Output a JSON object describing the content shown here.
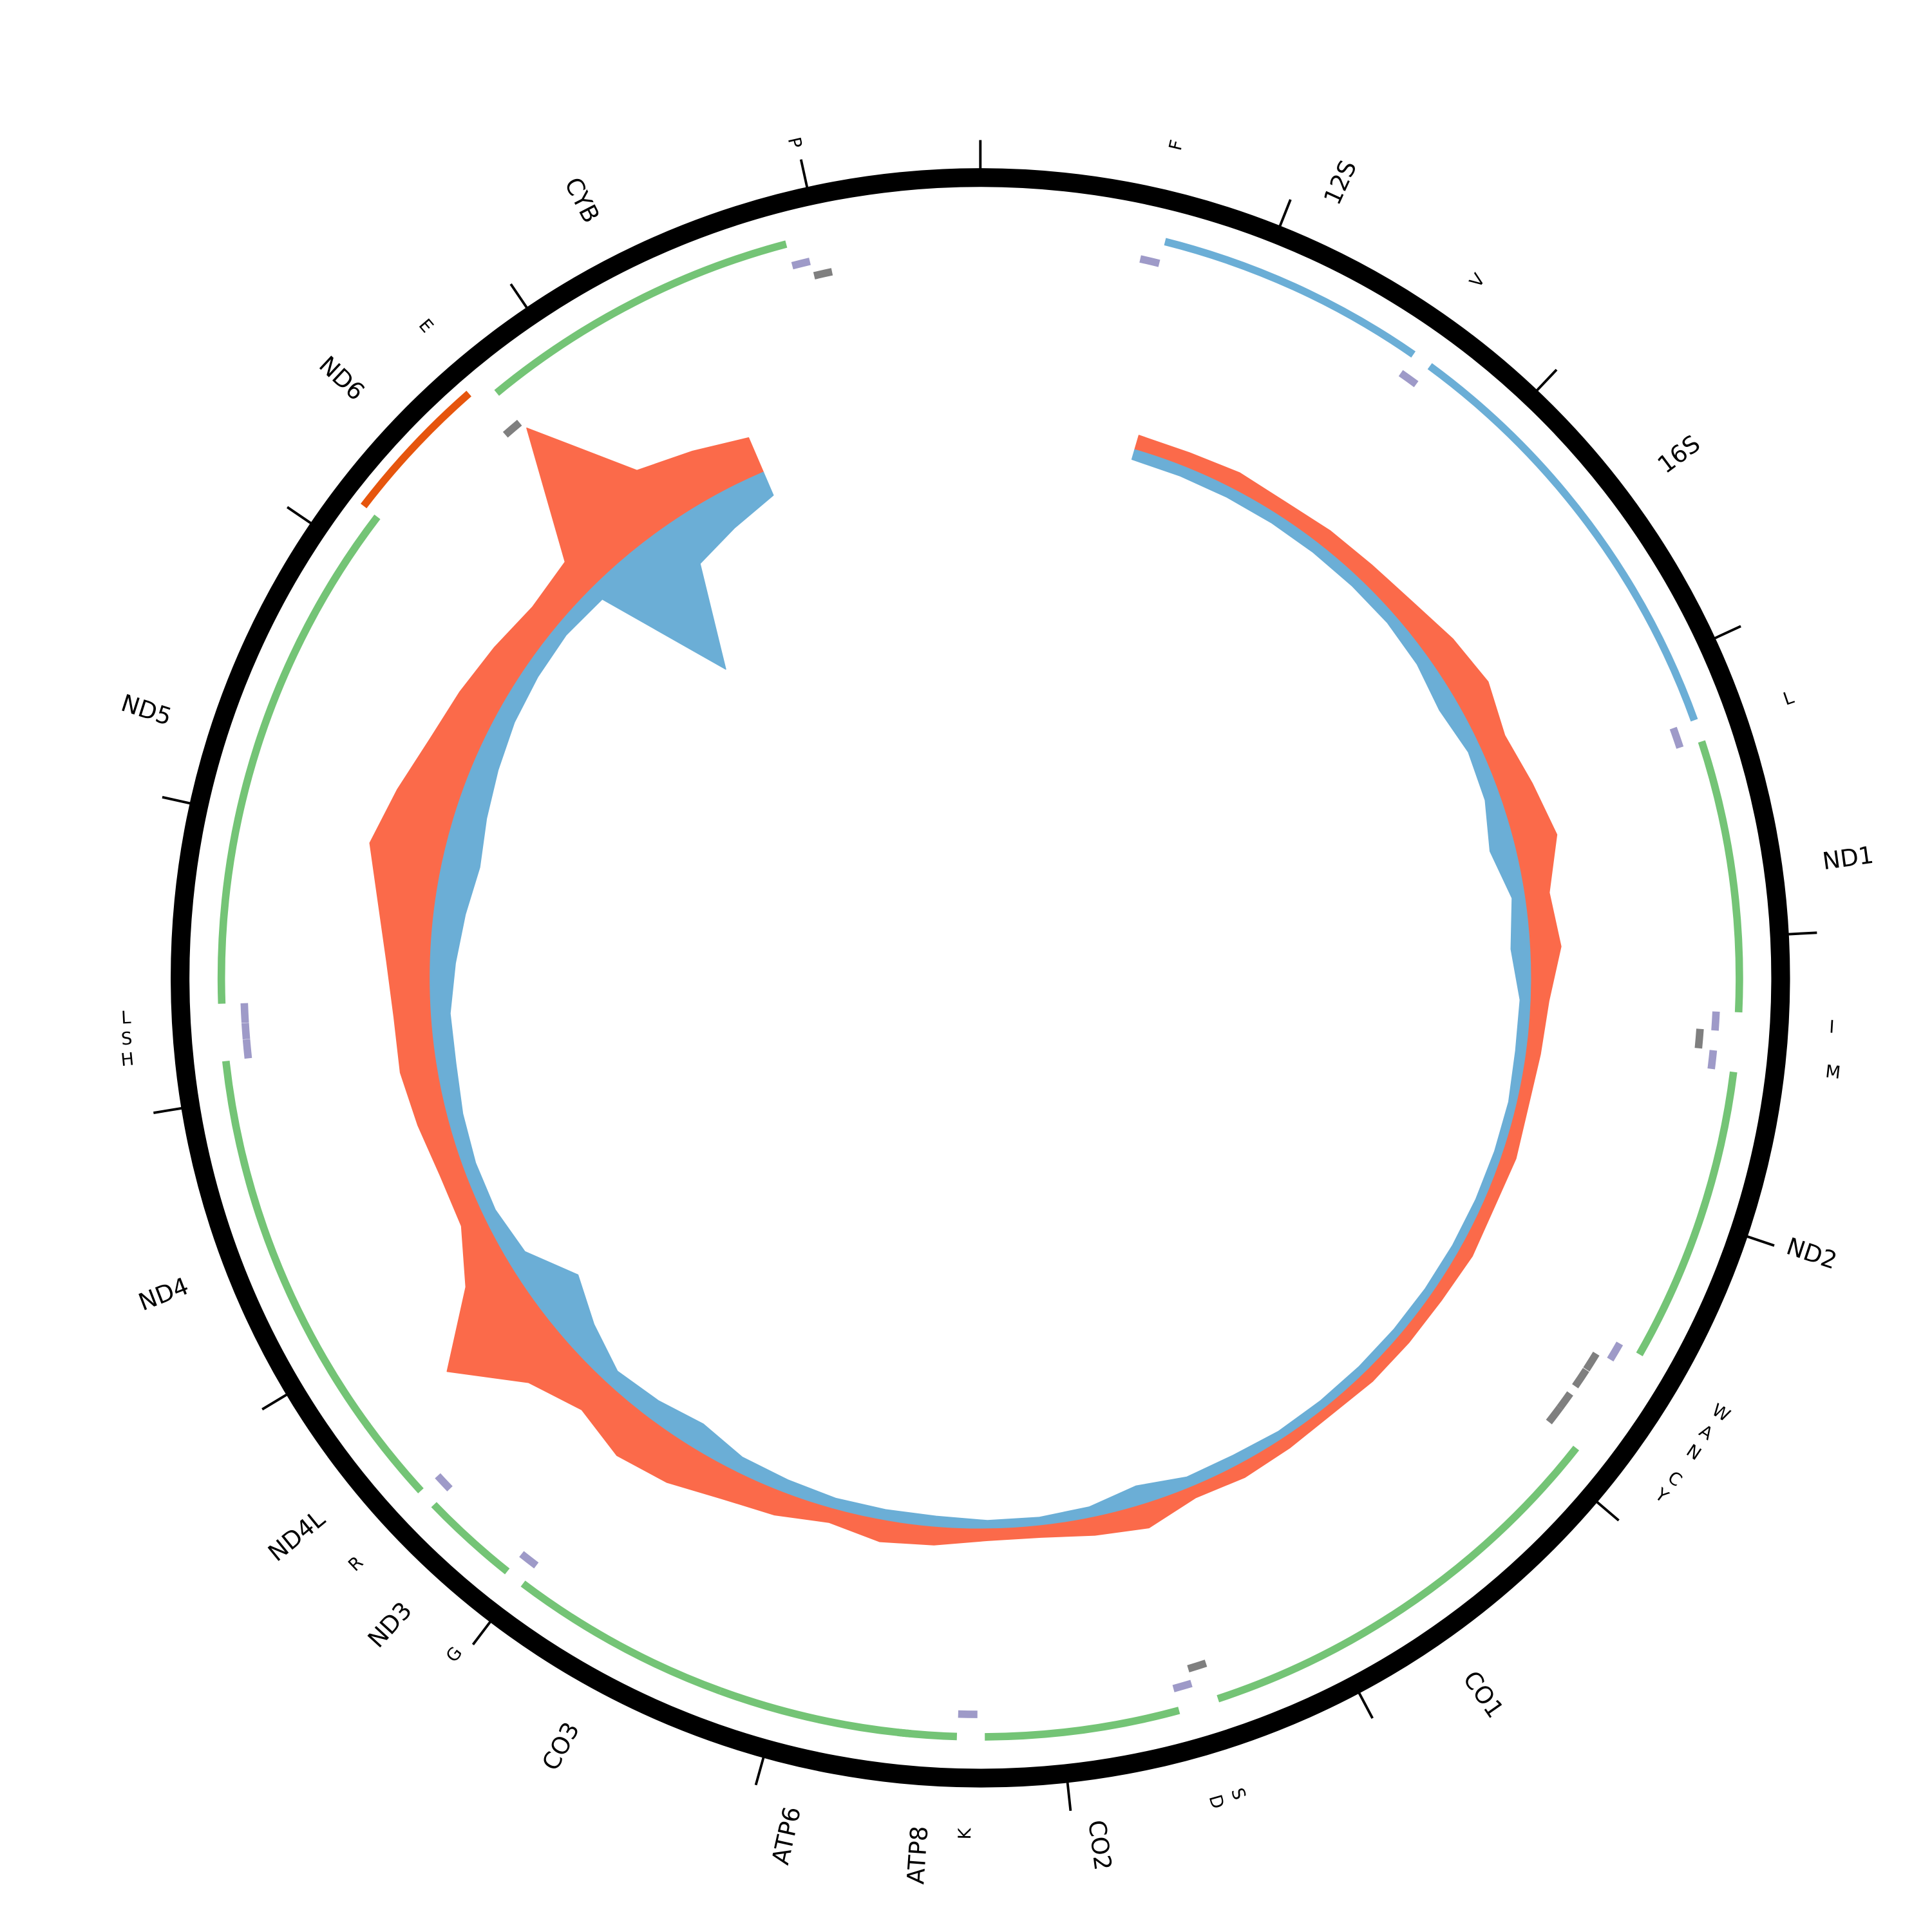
{
  "chart_data": {
    "type": "genome-map",
    "xlim": [
      0,
      16569
    ],
    "xticks": [
      0,
      1000,
      2000,
      3000,
      4000,
      5000,
      6000,
      7000,
      8000,
      9000,
      10000,
      11000,
      12000,
      13000,
      14000,
      15000,
      16000
    ],
    "features": [
      {
        "name": "F",
        "start": 577,
        "end": 647,
        "strand": "+",
        "kind": "trna",
        "color": "#9e9ac8"
      },
      {
        "name": "12S",
        "start": 648,
        "end": 1601,
        "strand": "+",
        "kind": "gene",
        "color": "#6baed6"
      },
      {
        "name": "V",
        "start": 1602,
        "end": 1670,
        "strand": "+",
        "kind": "trna",
        "color": "#9e9ac8"
      },
      {
        "name": "16S",
        "start": 1671,
        "end": 3229,
        "strand": "+",
        "kind": "gene",
        "color": "#6baed6"
      },
      {
        "name": "L",
        "start": 3230,
        "end": 3304,
        "strand": "+",
        "kind": "trna",
        "color": "#9e9ac8"
      },
      {
        "name": "ND1",
        "start": 3307,
        "end": 4262,
        "strand": "+",
        "kind": "gene",
        "color": "#74c476"
      },
      {
        "name": "I",
        "start": 4263,
        "end": 4331,
        "strand": "+",
        "kind": "trna",
        "color": "#9e9ac8"
      },
      {
        "name": null,
        "start": 4329,
        "end": 4400,
        "strand": "-",
        "kind": "trna",
        "color": "#7f7f7f"
      },
      {
        "name": "M",
        "start": 4402,
        "end": 4469,
        "strand": "+",
        "kind": "trna",
        "color": "#9e9ac8"
      },
      {
        "name": "ND2",
        "start": 4470,
        "end": 5511,
        "strand": "+",
        "kind": "gene",
        "color": "#74c476"
      },
      {
        "name": "W",
        "start": 5512,
        "end": 5579,
        "strand": "+",
        "kind": "trna",
        "color": "#9e9ac8"
      },
      {
        "name": "A",
        "start": 5587,
        "end": 5655,
        "strand": "-",
        "kind": "trna",
        "color": "#7f7f7f"
      },
      {
        "name": "N",
        "start": 5657,
        "end": 5729,
        "strand": "-",
        "kind": "trna",
        "color": "#7f7f7f"
      },
      {
        "name": "C",
        "start": 5761,
        "end": 5826,
        "strand": "-",
        "kind": "trna",
        "color": "#7f7f7f"
      },
      {
        "name": "Y",
        "start": 5826,
        "end": 5891,
        "strand": "-",
        "kind": "trna",
        "color": "#7f7f7f"
      },
      {
        "name": "CO1",
        "start": 5904,
        "end": 7445,
        "strand": "+",
        "kind": "gene",
        "color": "#74c476"
      },
      {
        "name": "S",
        "start": 7446,
        "end": 7514,
        "strand": "-",
        "kind": "trna",
        "color": "#7f7f7f"
      },
      {
        "name": "D",
        "start": 7518,
        "end": 7585,
        "strand": "+",
        "kind": "trna",
        "color": "#9e9ac8"
      },
      {
        "name": "CO2",
        "start": 7586,
        "end": 8269,
        "strand": "+",
        "kind": "gene",
        "color": "#74c476"
      },
      {
        "name": "K",
        "start": 8295,
        "end": 8364,
        "strand": "+",
        "kind": "trna",
        "color": "#9e9ac8"
      },
      {
        "name": "ATP8",
        "start": 8366,
        "end": 8572,
        "strand": "+",
        "kind": "gene",
        "color": "#74c476"
      },
      {
        "name": "ATP6",
        "start": 8527,
        "end": 9207,
        "strand": "+",
        "kind": "gene",
        "color": "#74c476"
      },
      {
        "name": "CO3",
        "start": 9207,
        "end": 9990,
        "strand": "+",
        "kind": "gene",
        "color": "#74c476"
      },
      {
        "name": "G",
        "start": 9991,
        "end": 10058,
        "strand": "+",
        "kind": "trna",
        "color": "#9e9ac8"
      },
      {
        "name": "ND3",
        "start": 10059,
        "end": 10404,
        "strand": "+",
        "kind": "gene",
        "color": "#74c476"
      },
      {
        "name": "R",
        "start": 10405,
        "end": 10469,
        "strand": "+",
        "kind": "trna",
        "color": "#9e9ac8"
      },
      {
        "name": "ND4L",
        "start": 10470,
        "end": 10766,
        "strand": "+",
        "kind": "gene",
        "color": "#74c476"
      },
      {
        "name": "ND4",
        "start": 10760,
        "end": 12137,
        "strand": "+",
        "kind": "gene",
        "color": "#74c476"
      },
      {
        "name": "H",
        "start": 12138,
        "end": 12206,
        "strand": "+",
        "kind": "trna",
        "color": "#9e9ac8"
      },
      {
        "name": "S",
        "start": 12207,
        "end": 12265,
        "strand": "+",
        "kind": "trna",
        "color": "#9e9ac8"
      },
      {
        "name": "L",
        "start": 12266,
        "end": 12336,
        "strand": "+",
        "kind": "trna",
        "color": "#9e9ac8"
      },
      {
        "name": "ND5",
        "start": 12337,
        "end": 14148,
        "strand": "+",
        "kind": "gene",
        "color": "#74c476"
      },
      {
        "name": "ND6",
        "start": 14149,
        "end": 14673,
        "strand": "-",
        "kind": "gene",
        "color": "#e6550d"
      },
      {
        "name": "E",
        "start": 14674,
        "end": 14742,
        "strand": "-",
        "kind": "trna",
        "color": "#7f7f7f"
      },
      {
        "name": "CYB",
        "start": 14747,
        "end": 15887,
        "strand": "+",
        "kind": "gene",
        "color": "#74c476"
      },
      {
        "name": null,
        "start": 15888,
        "end": 15953,
        "strand": "+",
        "kind": "trna",
        "color": "#9e9ac8"
      },
      {
        "name": "P",
        "start": 15956,
        "end": 16023,
        "strand": "-",
        "kind": "trna",
        "color": "#7f7f7f"
      }
    ],
    "coverage": {
      "x": [
        750,
        1000,
        1250,
        1500,
        1750,
        2000,
        2250,
        2500,
        2750,
        3000,
        3250,
        3500,
        3750,
        4000,
        4250,
        4500,
        4750,
        5000,
        5250,
        5500,
        5750,
        6000,
        6250,
        6500,
        6750,
        7000,
        7250,
        7500,
        7750,
        8000,
        8250,
        8500,
        8750,
        9000,
        9250,
        9500,
        9750,
        10000,
        10250,
        10500,
        10750,
        11000,
        11250,
        11500,
        11750,
        12000,
        12250,
        12500,
        12750,
        13000,
        13250,
        13500,
        13750,
        14000,
        14250,
        14500,
        14750,
        15000,
        15250,
        15500
      ],
      "series": [
        {
          "color": "#fb6a4a",
          "direction": "out",
          "values": [
            12,
            12,
            14,
            12,
            14,
            15,
            18,
            25,
            30,
            22,
            28,
            35,
            20,
            25,
            15,
            12,
            10,
            12,
            10,
            12,
            10,
            10,
            10,
            8,
            10,
            12,
            10,
            20,
            15,
            10,
            10,
            15,
            18,
            12,
            20,
            25,
            35,
            40,
            30,
            45,
            90,
            40,
            20,
            20,
            25,
            30,
            30,
            35,
            45,
            60,
            50,
            40,
            35,
            30,
            25,
            30,
            130,
            50,
            40,
            30
          ]
        },
        {
          "color": "#6baed6",
          "direction": "in",
          "values": [
            8,
            8,
            8,
            8,
            8,
            8,
            8,
            10,
            15,
            10,
            12,
            20,
            10,
            15,
            8,
            8,
            6,
            6,
            6,
            6,
            6,
            6,
            6,
            6,
            6,
            8,
            8,
            15,
            8,
            6,
            6,
            8,
            8,
            8,
            10,
            12,
            20,
            15,
            12,
            25,
            40,
            15,
            10,
            10,
            12,
            15,
            15,
            20,
            25,
            30,
            25,
            20,
            15,
            12,
            10,
            12,
            120,
            40,
            30,
            20
          ]
        }
      ]
    }
  }
}
